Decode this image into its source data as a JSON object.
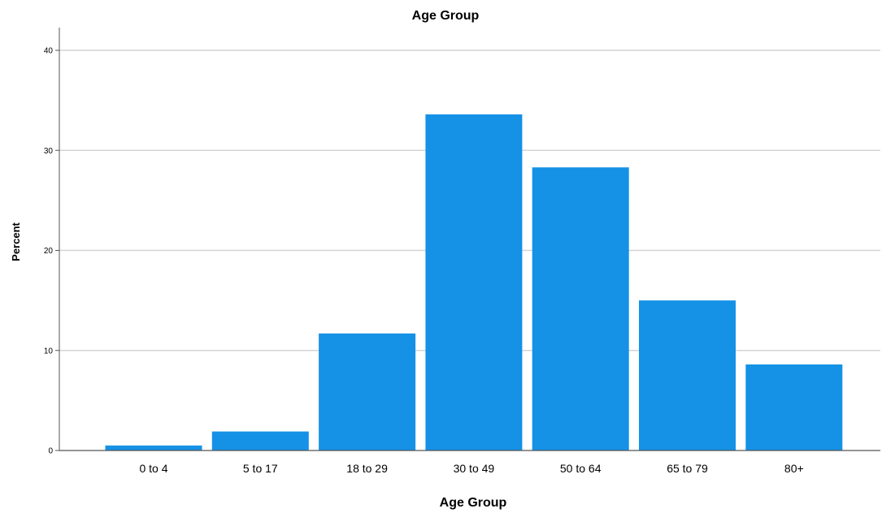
{
  "chart_data": {
    "type": "bar",
    "title": "Age Group",
    "xlabel": "Age Group",
    "ylabel": "Percent",
    "categories": [
      "0 to 4",
      "5 to 17",
      "18 to 29",
      "30 to 49",
      "50 to 64",
      "65 to 79",
      "80+"
    ],
    "values": [
      0.5,
      1.9,
      11.7,
      33.6,
      28.3,
      15.0,
      8.6
    ],
    "yticks": [
      "0",
      "10",
      "20",
      "30",
      "40"
    ],
    "ylim": [
      0,
      40
    ],
    "grid": true,
    "bar_color": "#1591e6",
    "grid_color": "#d4d4d4",
    "axis_color": "#555555"
  }
}
